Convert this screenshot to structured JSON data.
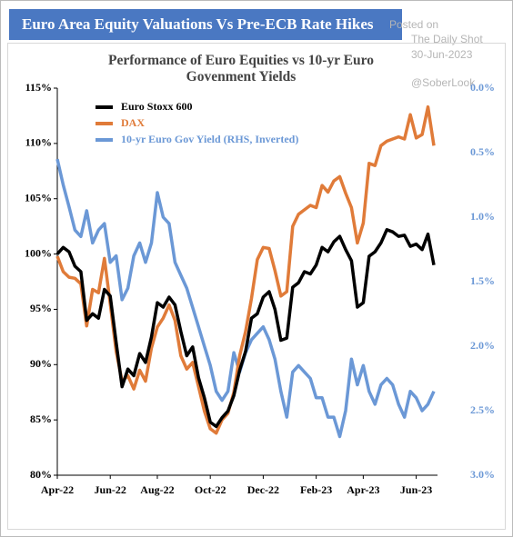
{
  "header": {
    "title": "Euro Area Equity Valuations Vs Pre-ECB Rate Hikes",
    "watermark": [
      "Posted on",
      "The Daily Shot",
      "30-Jun-2023",
      "@SoberLook"
    ]
  },
  "chart_data": {
    "type": "line",
    "title": "Performance of Euro Equities vs 10-yr Euro Govenment Yields",
    "categories": [
      "Apr-22",
      null,
      null,
      null,
      null,
      null,
      null,
      null,
      null,
      "Jun-22",
      null,
      null,
      null,
      null,
      null,
      null,
      null,
      "Aug-22",
      null,
      null,
      null,
      null,
      null,
      null,
      null,
      null,
      "Oct-22",
      null,
      null,
      null,
      null,
      null,
      null,
      null,
      null,
      "Dec-22",
      null,
      null,
      null,
      null,
      null,
      null,
      null,
      null,
      "Feb-23",
      null,
      null,
      null,
      null,
      null,
      null,
      null,
      "Apr-23",
      null,
      null,
      null,
      null,
      null,
      null,
      null,
      null,
      "Jun-23",
      null,
      null,
      null
    ],
    "series": [
      {
        "name": "Euro Stoxx 600",
        "color": "#000000",
        "values": [
          100.0,
          100.6,
          100.2,
          98.9,
          98.4,
          94.0,
          94.6,
          94.2,
          96.8,
          96.2,
          92.0,
          88.0,
          89.6,
          89.0,
          91.0,
          90.2,
          92.5,
          95.6,
          95.2,
          96.1,
          95.4,
          93.0,
          90.8,
          91.6,
          88.8,
          87.0,
          84.8,
          84.4,
          85.2,
          85.8,
          87.2,
          89.5,
          91.2,
          94.2,
          94.6,
          96.1,
          96.6,
          95.0,
          92.2,
          92.4,
          97.0,
          97.4,
          98.4,
          98.2,
          99.0,
          100.6,
          100.2,
          101.1,
          101.6,
          100.4,
          99.4,
          95.2,
          95.6,
          99.8,
          100.2,
          101.0,
          102.2,
          102.0,
          101.6,
          101.7,
          100.7,
          100.9,
          100.4,
          101.8,
          99.0
        ]
      },
      {
        "name": "DAX",
        "color": "#e07b39",
        "values": [
          99.8,
          98.4,
          97.9,
          97.8,
          97.3,
          93.5,
          96.8,
          96.5,
          99.6,
          95.5,
          91.2,
          88.5,
          89.0,
          87.8,
          89.5,
          88.5,
          91.5,
          93.4,
          94.2,
          95.4,
          94.0,
          90.8,
          89.6,
          90.2,
          88.0,
          85.8,
          84.2,
          83.8,
          85.0,
          85.6,
          87.5,
          90.8,
          93.0,
          96.0,
          99.5,
          100.6,
          100.5,
          98.5,
          96.2,
          96.6,
          102.5,
          103.6,
          104.0,
          104.4,
          104.2,
          106.2,
          105.6,
          106.6,
          107.0,
          105.5,
          104.2,
          101.0,
          102.8,
          108.2,
          108.0,
          109.8,
          110.2,
          110.4,
          110.6,
          110.4,
          112.6,
          110.5,
          110.8,
          113.3,
          109.8
        ]
      },
      {
        "name": "10-yr Euro Gov Yield (RHS, Inverted)",
        "color": "#6b98d6",
        "axis": "y2",
        "values": [
          0.55,
          0.75,
          0.92,
          1.1,
          1.15,
          0.95,
          1.2,
          1.1,
          1.05,
          1.35,
          1.3,
          1.64,
          1.55,
          1.3,
          1.2,
          1.35,
          1.2,
          0.81,
          1.0,
          1.05,
          1.35,
          1.45,
          1.55,
          1.7,
          1.85,
          2.0,
          2.15,
          2.35,
          2.42,
          2.35,
          2.05,
          2.2,
          2.05,
          1.95,
          1.9,
          1.85,
          1.95,
          2.1,
          2.35,
          2.55,
          2.2,
          2.15,
          2.2,
          2.25,
          2.4,
          2.4,
          2.55,
          2.55,
          2.7,
          2.5,
          2.1,
          2.3,
          2.15,
          2.35,
          2.45,
          2.3,
          2.25,
          2.3,
          2.45,
          2.55,
          2.35,
          2.4,
          2.5,
          2.45,
          2.35
        ]
      }
    ],
    "ylim": [
      80,
      115
    ],
    "yticks": [
      {
        "value": 80,
        "label": "80%"
      },
      {
        "value": 85,
        "label": "85%"
      },
      {
        "value": 90,
        "label": "90%"
      },
      {
        "value": 95,
        "label": "95%"
      },
      {
        "value": 100,
        "label": "100%"
      },
      {
        "value": 105,
        "label": "105%"
      },
      {
        "value": 110,
        "label": "110%"
      },
      {
        "value": 115,
        "label": "115%"
      }
    ],
    "y2lim": [
      0,
      3
    ],
    "y2ticks": [
      {
        "value": 0,
        "label": "0.0%"
      },
      {
        "value": 0.5,
        "label": "0.5%"
      },
      {
        "value": 1,
        "label": "1.0%"
      },
      {
        "value": 1.5,
        "label": "1.5%"
      },
      {
        "value": 2,
        "label": "2.0%"
      },
      {
        "value": 2.5,
        "label": "2.5%"
      },
      {
        "value": 3,
        "label": "3.0%"
      }
    ],
    "y2_inverted": true,
    "y2_color": "#6b98d6",
    "grid": false,
    "legend": "top-left"
  }
}
